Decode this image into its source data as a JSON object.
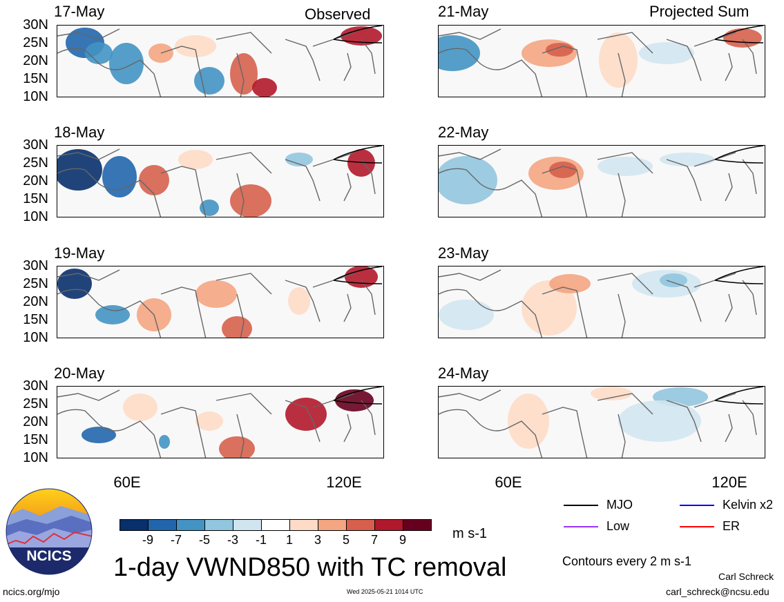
{
  "columns": [
    {
      "title": "Observed",
      "dates": [
        "17-May",
        "18-May",
        "19-May",
        "20-May"
      ]
    },
    {
      "title": "Projected Sum",
      "dates": [
        "21-May",
        "22-May",
        "23-May",
        "24-May"
      ]
    }
  ],
  "y_ticks": [
    "30N",
    "25N",
    "20N",
    "15N",
    "10N"
  ],
  "x_ticks": [
    "60E",
    "120E"
  ],
  "colorbar": {
    "labels": [
      "-9",
      "-7",
      "-5",
      "-3",
      "-1",
      "1",
      "3",
      "5",
      "7",
      "9"
    ],
    "colors": [
      "#08306b",
      "#2166ac",
      "#4393c3",
      "#92c5de",
      "#d1e5f0",
      "#ffffff",
      "#fddbc7",
      "#f4a582",
      "#d6604d",
      "#b2182b",
      "#67001f"
    ],
    "units": "m s-1"
  },
  "title": "1-day VWND850 with TC removal",
  "legend": [
    {
      "label": "MJO",
      "color": "#000000"
    },
    {
      "label": "Kelvin x2",
      "color": "#0000ff"
    },
    {
      "label": "Low",
      "color": "#9933ff"
    },
    {
      "label": "ER",
      "color": "#ff0000"
    }
  ],
  "contours_note": "Contours every 2 m s-1",
  "author": "Carl Schreck",
  "email": "carl_schreck@ncsu.edu",
  "site": "ncics.org/mjo",
  "timestamp": "Wed 2025-05-21 1014 UTC",
  "logo_text": "NCICS",
  "chart_data": {
    "type": "heatmap",
    "variable": "1-day VWND850 with TC removal",
    "units": "m s-1",
    "lat_range": [
      10,
      30
    ],
    "lon_ticks": [
      "60E",
      "120E"
    ],
    "lat_ticks": [
      "30N",
      "25N",
      "20N",
      "15N",
      "10N"
    ],
    "color_levels": [
      -9,
      -7,
      -5,
      -3,
      -1,
      1,
      3,
      5,
      7,
      9
    ],
    "panels": [
      {
        "column": "Observed",
        "date": "17-May"
      },
      {
        "column": "Observed",
        "date": "18-May"
      },
      {
        "column": "Observed",
        "date": "19-May"
      },
      {
        "column": "Observed",
        "date": "20-May"
      },
      {
        "column": "Projected Sum",
        "date": "21-May"
      },
      {
        "column": "Projected Sum",
        "date": "22-May"
      },
      {
        "column": "Projected Sum",
        "date": "23-May"
      },
      {
        "column": "Projected Sum",
        "date": "24-May"
      }
    ]
  }
}
